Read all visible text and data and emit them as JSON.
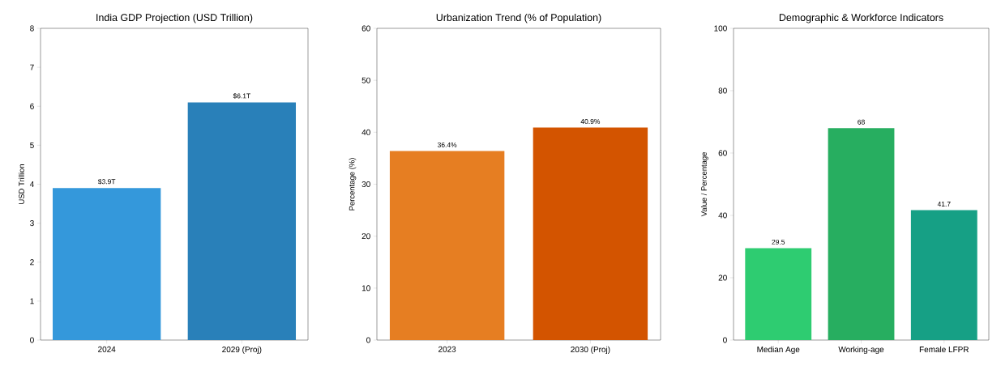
{
  "chart_data": [
    {
      "type": "bar",
      "title": "India GDP Projection (USD Trillion)",
      "ylabel": "USD Trillion",
      "categories": [
        "2024",
        "2029 (Proj)"
      ],
      "values": [
        3.9,
        6.1
      ],
      "colors": [
        "#3498db",
        "#2980b9"
      ],
      "value_labels": [
        "$3.9T",
        "$6.1T"
      ],
      "ylim": [
        0,
        8
      ],
      "yticks": [
        0,
        1,
        2,
        3,
        4,
        5,
        6,
        7,
        8
      ]
    },
    {
      "type": "bar",
      "title": "Urbanization Trend (% of Population)",
      "ylabel": "Percentage (%)",
      "categories": [
        "2023",
        "2030 (Proj)"
      ],
      "values": [
        36.4,
        40.9
      ],
      "colors": [
        "#e67e22",
        "#d35400"
      ],
      "value_labels": [
        "36.4%",
        "40.9%"
      ],
      "ylim": [
        0,
        60
      ],
      "yticks": [
        0,
        10,
        20,
        30,
        40,
        50,
        60
      ]
    },
    {
      "type": "bar",
      "title": "Demographic & Workforce Indicators",
      "ylabel": "Value / Percentage",
      "categories": [
        "Median Age",
        "Working-age",
        "Female LFPR"
      ],
      "values": [
        29.5,
        68,
        41.7
      ],
      "colors": [
        "#2ecc71",
        "#27ae60",
        "#16a085"
      ],
      "data_labels": true,
      "ylim": [
        0,
        100
      ],
      "yticks": [
        0,
        20,
        40,
        60,
        80,
        100
      ]
    }
  ]
}
